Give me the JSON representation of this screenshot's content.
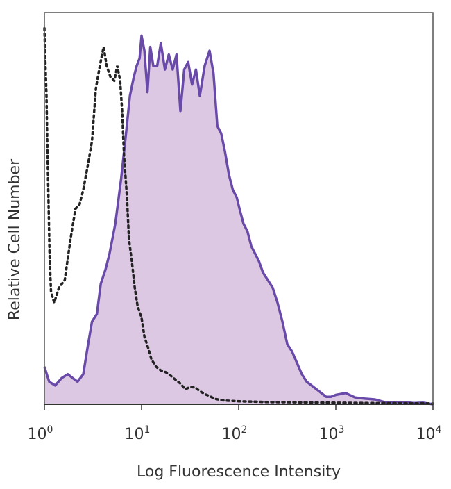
{
  "chart_data": {
    "type": "area",
    "title": "",
    "xlabel": "Log Fluorescence Intensity",
    "ylabel": "Relative Cell Number",
    "x_scale": "log",
    "xlim": [
      1,
      10000
    ],
    "ylim": [
      0,
      100
    ],
    "grid": false,
    "legend": "none",
    "x_ticks": [
      {
        "base": "10",
        "exp": "0",
        "value": 1
      },
      {
        "base": "10",
        "exp": "1",
        "value": 10
      },
      {
        "base": "10",
        "exp": "2",
        "value": 100
      },
      {
        "base": "10",
        "exp": "3",
        "value": 1000
      },
      {
        "base": "10",
        "exp": "4",
        "value": 10000
      }
    ],
    "series": [
      {
        "style": "filled-solid",
        "line_color": "#6a4aa8",
        "fill_color": "#dcc8e3",
        "points": [
          [
            1.0,
            10
          ],
          [
            1.12,
            6
          ],
          [
            1.29,
            5
          ],
          [
            1.51,
            7
          ],
          [
            1.74,
            8
          ],
          [
            1.95,
            7
          ],
          [
            2.19,
            6
          ],
          [
            2.51,
            8
          ],
          [
            2.82,
            16
          ],
          [
            3.09,
            22
          ],
          [
            3.47,
            24
          ],
          [
            3.8,
            32
          ],
          [
            4.27,
            36
          ],
          [
            4.68,
            40
          ],
          [
            5.37,
            48
          ],
          [
            6.17,
            60
          ],
          [
            6.92,
            72
          ],
          [
            7.59,
            82
          ],
          [
            8.32,
            87
          ],
          [
            8.91,
            90
          ],
          [
            9.55,
            92
          ],
          [
            10.0,
            98
          ],
          [
            10.7,
            94
          ],
          [
            11.5,
            83
          ],
          [
            12.3,
            95
          ],
          [
            13.2,
            90
          ],
          [
            14.5,
            90
          ],
          [
            15.8,
            96
          ],
          [
            17.4,
            89
          ],
          [
            19.1,
            93
          ],
          [
            20.9,
            89
          ],
          [
            22.9,
            93
          ],
          [
            25.1,
            78
          ],
          [
            27.5,
            89
          ],
          [
            30.2,
            91
          ],
          [
            33.1,
            85
          ],
          [
            36.3,
            89
          ],
          [
            39.8,
            82
          ],
          [
            44.7,
            90
          ],
          [
            50.1,
            94
          ],
          [
            55.0,
            88
          ],
          [
            60.3,
            74
          ],
          [
            66.1,
            72
          ],
          [
            72.4,
            67
          ],
          [
            79.4,
            61
          ],
          [
            87.1,
            57
          ],
          [
            95.5,
            55
          ],
          [
            102,
            52
          ],
          [
            112,
            48
          ],
          [
            123,
            46
          ],
          [
            135,
            42
          ],
          [
            148,
            40
          ],
          [
            162,
            38
          ],
          [
            178,
            35
          ],
          [
            200,
            33
          ],
          [
            224,
            31
          ],
          [
            251,
            27
          ],
          [
            282,
            22
          ],
          [
            316,
            16
          ],
          [
            355,
            14
          ],
          [
            398,
            11
          ],
          [
            447,
            8
          ],
          [
            501,
            6
          ],
          [
            562,
            5
          ],
          [
            631,
            4
          ],
          [
            708,
            3
          ],
          [
            794,
            2
          ],
          [
            891,
            2
          ],
          [
            1000,
            2.5
          ],
          [
            1259,
            3
          ],
          [
            1585,
            1.8
          ],
          [
            1995,
            1.5
          ],
          [
            2512,
            1.3
          ],
          [
            3162,
            0.6
          ],
          [
            3981,
            0.5
          ],
          [
            5012,
            0.6
          ],
          [
            6310,
            0.3
          ],
          [
            7943,
            0.4
          ],
          [
            10000,
            0
          ]
        ]
      },
      {
        "style": "dotted",
        "line_color": "#222222",
        "points": [
          [
            1.0,
            100
          ],
          [
            1.02,
            92
          ],
          [
            1.05,
            82
          ],
          [
            1.07,
            70
          ],
          [
            1.1,
            55
          ],
          [
            1.13,
            40
          ],
          [
            1.17,
            30
          ],
          [
            1.26,
            27
          ],
          [
            1.41,
            31
          ],
          [
            1.62,
            33
          ],
          [
            1.86,
            44
          ],
          [
            2.09,
            52
          ],
          [
            2.29,
            53
          ],
          [
            2.51,
            57
          ],
          [
            2.82,
            64
          ],
          [
            3.09,
            70
          ],
          [
            3.39,
            84
          ],
          [
            3.72,
            90
          ],
          [
            4.07,
            95
          ],
          [
            4.37,
            90
          ],
          [
            4.79,
            87
          ],
          [
            5.25,
            86
          ],
          [
            5.62,
            90
          ],
          [
            6.03,
            86
          ],
          [
            6.31,
            78
          ],
          [
            6.61,
            66
          ],
          [
            7.08,
            55
          ],
          [
            7.41,
            44
          ],
          [
            7.94,
            38
          ],
          [
            8.51,
            31
          ],
          [
            9.12,
            26
          ],
          [
            10.0,
            23
          ],
          [
            10.7,
            18
          ],
          [
            11.7,
            15
          ],
          [
            12.6,
            12
          ],
          [
            14.1,
            10
          ],
          [
            15.8,
            9
          ],
          [
            17.8,
            8.5
          ],
          [
            20.0,
            7.6
          ],
          [
            22.4,
            6.5
          ],
          [
            25.1,
            5.5
          ],
          [
            28.2,
            4
          ],
          [
            31.6,
            4.6
          ],
          [
            35.5,
            4.5
          ],
          [
            39.8,
            3.5
          ],
          [
            44.7,
            2.7
          ],
          [
            50.1,
            2.2
          ],
          [
            56.2,
            1.5
          ],
          [
            63.1,
            1.2
          ],
          [
            70.8,
            1.0
          ],
          [
            100,
            0.8
          ],
          [
            200,
            0.6
          ],
          [
            500,
            0.5
          ],
          [
            1000,
            0.4
          ],
          [
            3000,
            0.3
          ],
          [
            10000,
            0.2
          ]
        ]
      }
    ]
  }
}
